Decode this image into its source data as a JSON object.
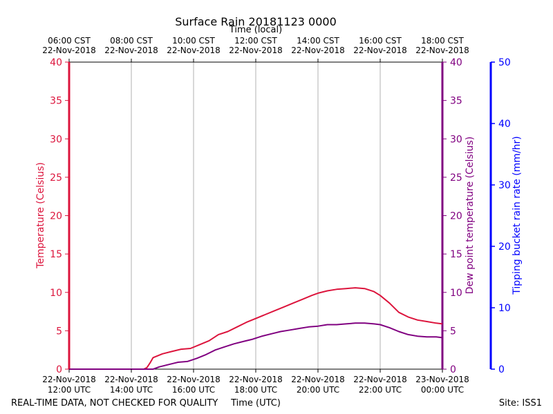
{
  "chart_data": {
    "type": "line",
    "title": "Surface Rain 20181123 0000",
    "top_axis_title": "Time (local)",
    "bottom_axis_title": "Time (UTC)",
    "footer_left": "REAL-TIME DATA, NOT CHECKED FOR QUALITY",
    "footer_right": "Site: ISS1",
    "x_range_hours_utc": [
      12,
      24
    ],
    "bottom_ticks": [
      {
        "hour": 12,
        "line1": "22-Nov-2018",
        "line2": "12:00 UTC"
      },
      {
        "hour": 14,
        "line1": "22-Nov-2018",
        "line2": "14:00 UTC"
      },
      {
        "hour": 16,
        "line1": "22-Nov-2018",
        "line2": "16:00 UTC"
      },
      {
        "hour": 18,
        "line1": "22-Nov-2018",
        "line2": "18:00 UTC"
      },
      {
        "hour": 20,
        "line1": "22-Nov-2018",
        "line2": "20:00 UTC"
      },
      {
        "hour": 22,
        "line1": "22-Nov-2018",
        "line2": "22:00 UTC"
      },
      {
        "hour": 24,
        "line1": "23-Nov-2018",
        "line2": "00:00 UTC"
      }
    ],
    "top_ticks": [
      {
        "hour": 12,
        "line1": "06:00 CST",
        "line2": "22-Nov-2018"
      },
      {
        "hour": 14,
        "line1": "08:00 CST",
        "line2": "22-Nov-2018"
      },
      {
        "hour": 16,
        "line1": "10:00 CST",
        "line2": "22-Nov-2018"
      },
      {
        "hour": 18,
        "line1": "12:00 CST",
        "line2": "22-Nov-2018"
      },
      {
        "hour": 20,
        "line1": "14:00 CST",
        "line2": "22-Nov-2018"
      },
      {
        "hour": 22,
        "line1": "16:00 CST",
        "line2": "22-Nov-2018"
      },
      {
        "hour": 24,
        "line1": "18:00 CST",
        "line2": "22-Nov-2018"
      }
    ],
    "axes": {
      "temperature": {
        "label": "Temperature (Celsius)",
        "range": [
          0,
          40
        ],
        "ticks": [
          0,
          5,
          10,
          15,
          20,
          25,
          30,
          35,
          40
        ],
        "color": "#dc143c"
      },
      "dewpoint": {
        "label": "Dew point temperature (Celsius)",
        "range": [
          0,
          40
        ],
        "ticks": [
          0,
          5,
          10,
          15,
          20,
          25,
          30,
          35,
          40
        ],
        "color": "#800080"
      },
      "rain_rate": {
        "label": "Tipping bucket rain rate (mm/hr)",
        "range": [
          0,
          50
        ],
        "ticks": [
          0,
          10,
          20,
          30,
          40,
          50
        ],
        "color": "#0000ff"
      }
    },
    "series": [
      {
        "name": "Temperature",
        "axis": "temperature",
        "color": "#dc143c",
        "points": [
          [
            12.0,
            0
          ],
          [
            14.4,
            0
          ],
          [
            14.5,
            0.2
          ],
          [
            14.6,
            0.8
          ],
          [
            14.7,
            1.5
          ],
          [
            15.0,
            2.0
          ],
          [
            15.3,
            2.3
          ],
          [
            15.6,
            2.6
          ],
          [
            15.9,
            2.7
          ],
          [
            16.2,
            3.2
          ],
          [
            16.5,
            3.7
          ],
          [
            16.8,
            4.5
          ],
          [
            17.1,
            4.9
          ],
          [
            17.4,
            5.5
          ],
          [
            17.7,
            6.1
          ],
          [
            18.0,
            6.6
          ],
          [
            18.3,
            7.1
          ],
          [
            18.6,
            7.6
          ],
          [
            18.9,
            8.1
          ],
          [
            19.2,
            8.6
          ],
          [
            19.5,
            9.1
          ],
          [
            19.8,
            9.6
          ],
          [
            20.0,
            9.9
          ],
          [
            20.3,
            10.2
          ],
          [
            20.6,
            10.4
          ],
          [
            20.9,
            10.5
          ],
          [
            21.2,
            10.6
          ],
          [
            21.5,
            10.5
          ],
          [
            21.8,
            10.1
          ],
          [
            22.0,
            9.6
          ],
          [
            22.3,
            8.6
          ],
          [
            22.6,
            7.4
          ],
          [
            22.9,
            6.8
          ],
          [
            23.2,
            6.4
          ],
          [
            23.5,
            6.2
          ],
          [
            23.8,
            6.0
          ],
          [
            24.0,
            5.9
          ]
        ]
      },
      {
        "name": "Dew point",
        "axis": "dewpoint",
        "color": "#800080",
        "points": [
          [
            12.0,
            0
          ],
          [
            14.7,
            0
          ],
          [
            14.9,
            0.3
          ],
          [
            15.2,
            0.6
          ],
          [
            15.5,
            0.9
          ],
          [
            15.8,
            1.0
          ],
          [
            16.1,
            1.4
          ],
          [
            16.4,
            1.9
          ],
          [
            16.7,
            2.5
          ],
          [
            17.0,
            2.9
          ],
          [
            17.3,
            3.3
          ],
          [
            17.6,
            3.6
          ],
          [
            17.9,
            3.9
          ],
          [
            18.2,
            4.3
          ],
          [
            18.5,
            4.6
          ],
          [
            18.8,
            4.9
          ],
          [
            19.1,
            5.1
          ],
          [
            19.4,
            5.3
          ],
          [
            19.7,
            5.5
          ],
          [
            20.0,
            5.6
          ],
          [
            20.3,
            5.8
          ],
          [
            20.6,
            5.8
          ],
          [
            20.9,
            5.9
          ],
          [
            21.2,
            6.0
          ],
          [
            21.5,
            6.0
          ],
          [
            21.8,
            5.9
          ],
          [
            22.0,
            5.8
          ],
          [
            22.3,
            5.4
          ],
          [
            22.6,
            4.9
          ],
          [
            22.9,
            4.5
          ],
          [
            23.2,
            4.3
          ],
          [
            23.5,
            4.2
          ],
          [
            23.8,
            4.2
          ],
          [
            24.0,
            4.1
          ]
        ]
      }
    ],
    "grid_vertical": true
  }
}
